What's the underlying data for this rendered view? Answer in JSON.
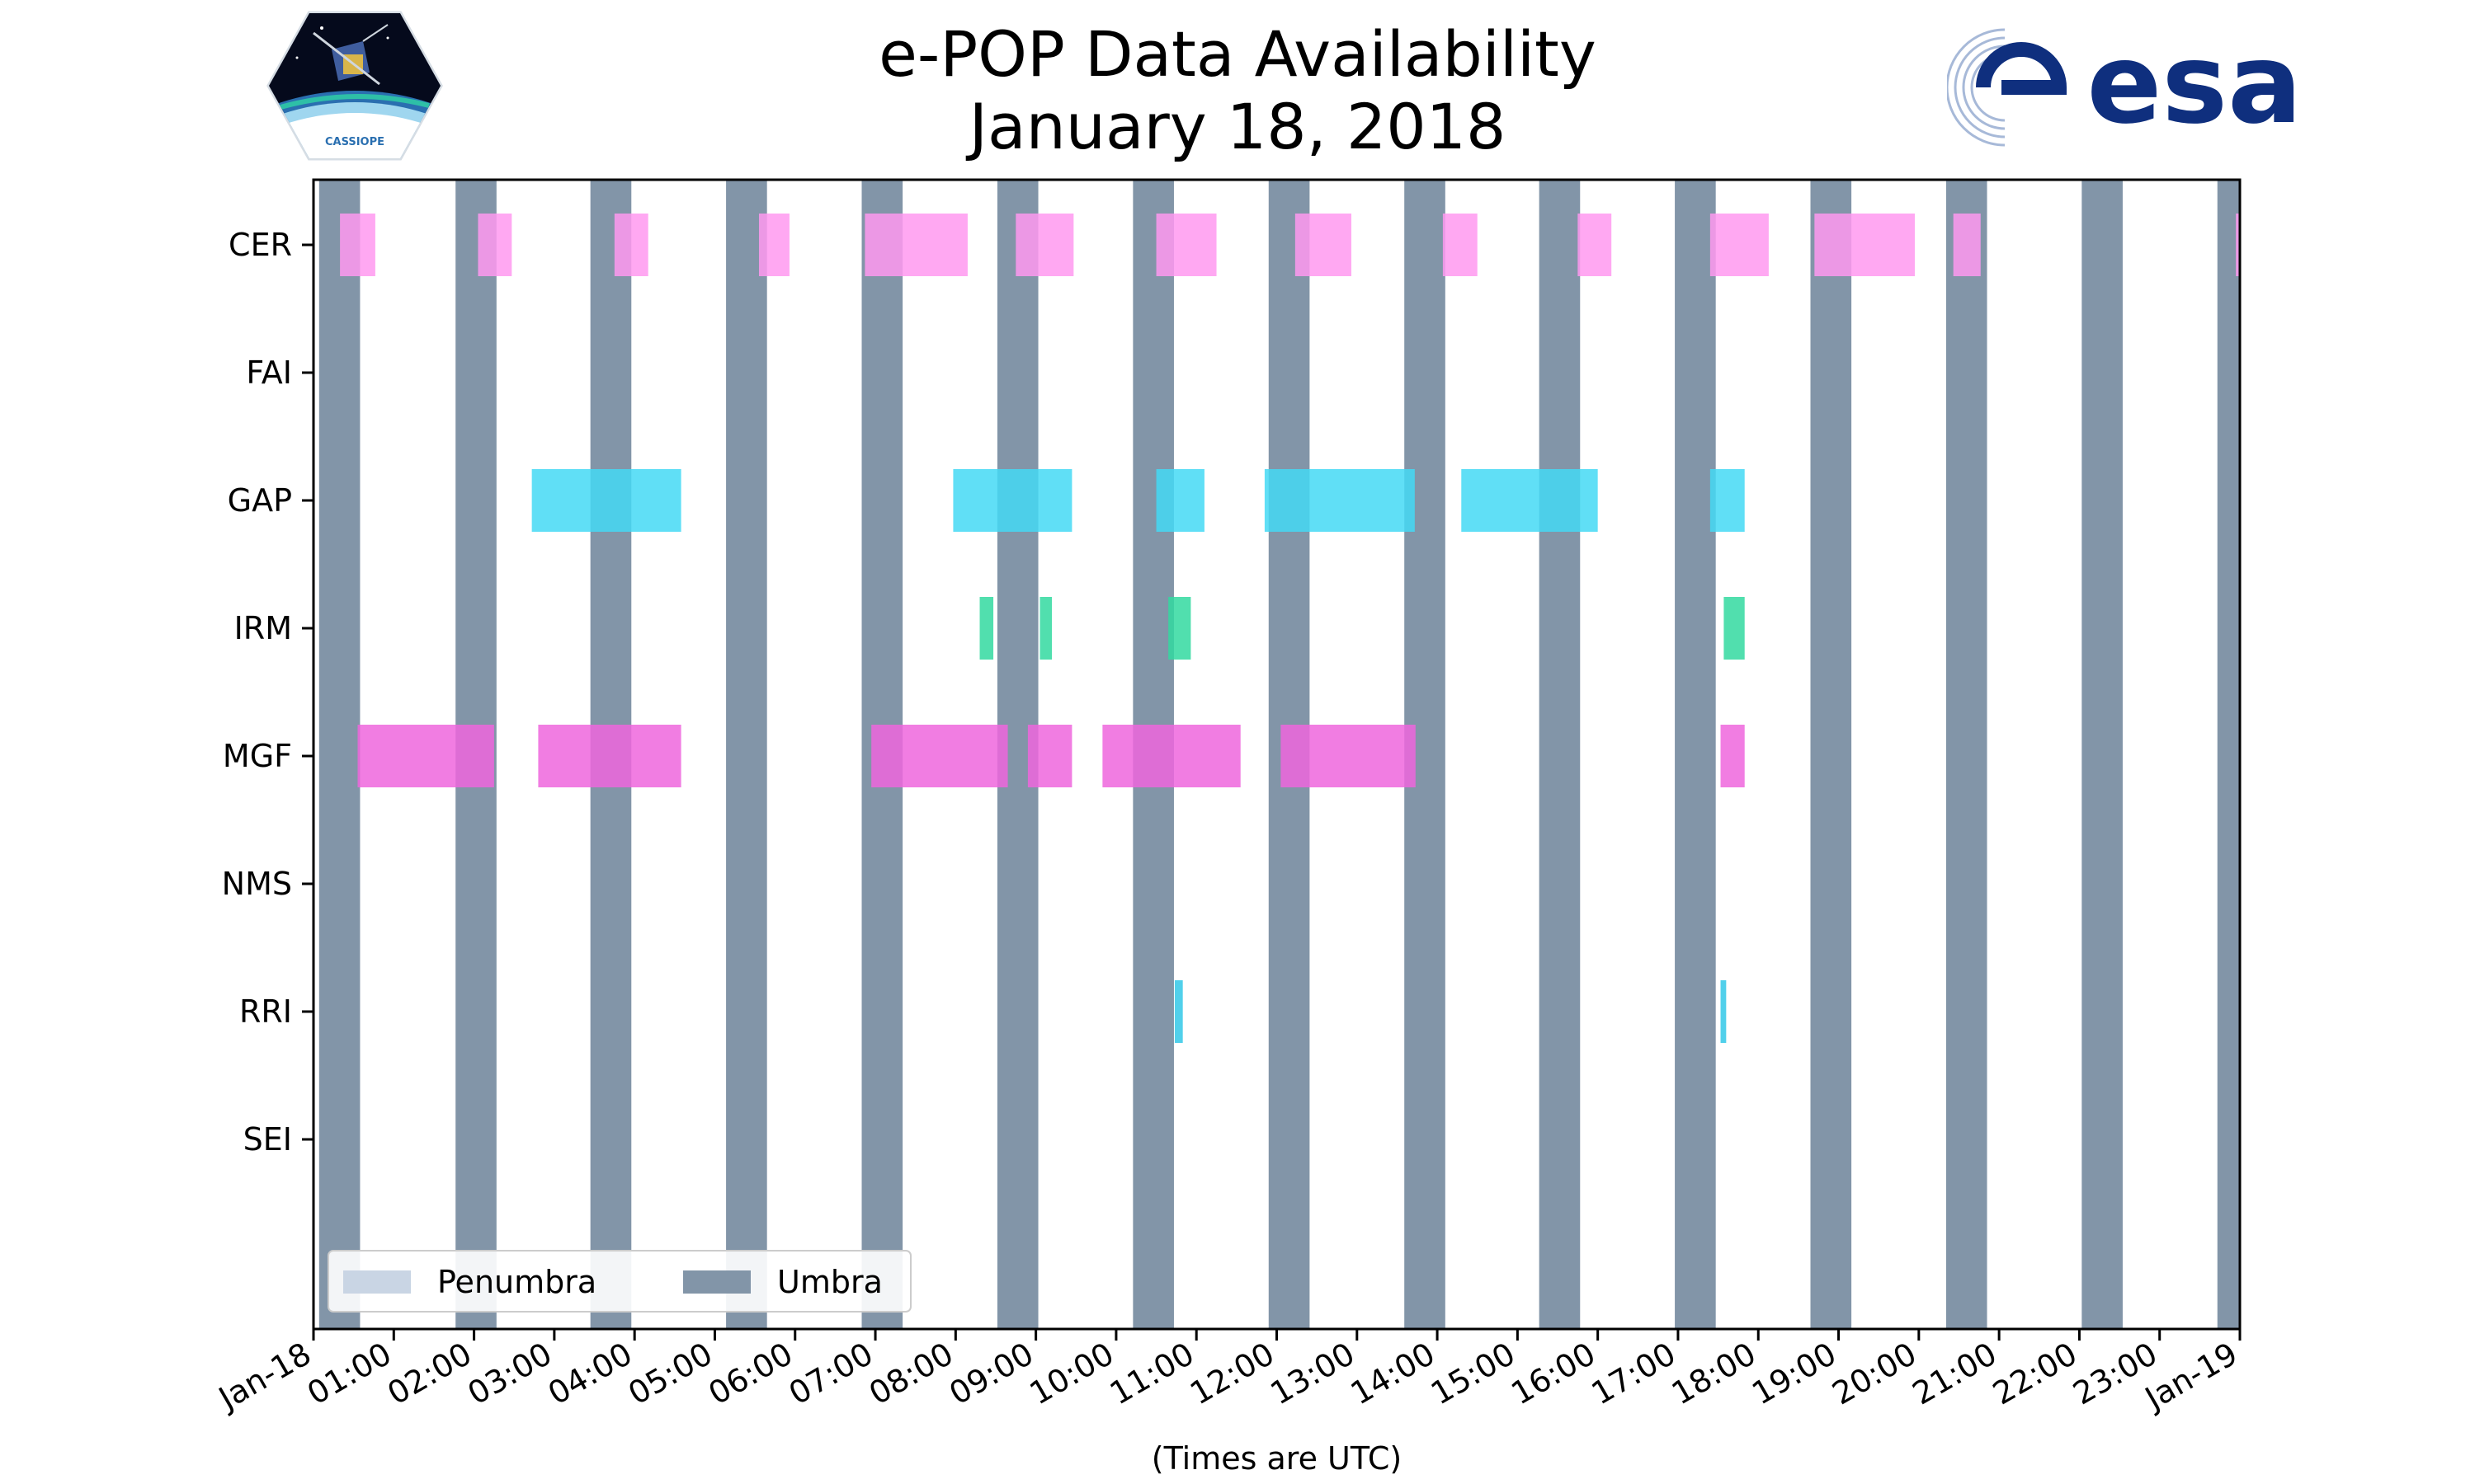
{
  "header": {
    "title_line_1": "e-POP Data Availability",
    "title_line_2": "January 18, 2018",
    "logo_left": "CASSIOPE",
    "logo_right": "esa"
  },
  "chart_data": {
    "type": "timeline",
    "title": "e-POP Data Availability January 18, 2018",
    "xlabel": "(Times are UTC)",
    "ylabel": "",
    "x_range_hours": [
      0,
      24
    ],
    "x_tick_labels": [
      "Jan-18",
      "01:00",
      "02:00",
      "03:00",
      "04:00",
      "05:00",
      "06:00",
      "07:00",
      "08:00",
      "09:00",
      "10:00",
      "11:00",
      "12:00",
      "13:00",
      "14:00",
      "15:00",
      "16:00",
      "17:00",
      "18:00",
      "19:00",
      "20:00",
      "21:00",
      "22:00",
      "23:00",
      "Jan-19"
    ],
    "instruments": [
      "CER",
      "FAI",
      "GAP",
      "IRM",
      "MGF",
      "NMS",
      "RRI",
      "SEI"
    ],
    "colors": {
      "CER": "#ff99f0",
      "GAP": "#44d9f5",
      "IRM": "#33d9a0",
      "MGF": "#ee66dd",
      "RRI": "#33c8e8",
      "umbra": "#8295a8",
      "penumbra": "#c9d5e4"
    },
    "umbra_intervals": [
      [
        0.07,
        0.58
      ],
      [
        1.77,
        2.28
      ],
      [
        3.45,
        3.96
      ],
      [
        5.14,
        5.65
      ],
      [
        6.83,
        7.34
      ],
      [
        8.52,
        9.03
      ],
      [
        10.21,
        10.72
      ],
      [
        11.9,
        12.41
      ],
      [
        13.59,
        14.1
      ],
      [
        15.27,
        15.78
      ],
      [
        16.96,
        17.47
      ],
      [
        18.65,
        19.16
      ],
      [
        20.34,
        20.85
      ],
      [
        22.03,
        22.54
      ],
      [
        23.72,
        24.0
      ]
    ],
    "series": [
      {
        "name": "CER",
        "intervals": [
          [
            0.33,
            0.77
          ],
          [
            2.05,
            2.47
          ],
          [
            3.75,
            4.17
          ],
          [
            5.55,
            5.93
          ],
          [
            6.87,
            8.15
          ],
          [
            8.75,
            9.47
          ],
          [
            10.5,
            11.25
          ],
          [
            12.23,
            12.93
          ],
          [
            14.07,
            14.5
          ],
          [
            15.75,
            16.17
          ],
          [
            17.4,
            18.13
          ],
          [
            18.7,
            19.95
          ],
          [
            20.43,
            20.77
          ],
          [
            23.95,
            24.0
          ]
        ]
      },
      {
        "name": "FAI",
        "intervals": []
      },
      {
        "name": "GAP",
        "intervals": [
          [
            2.72,
            4.58
          ],
          [
            7.97,
            9.45
          ],
          [
            10.5,
            11.1
          ],
          [
            11.85,
            13.72
          ],
          [
            14.3,
            16.0
          ],
          [
            17.4,
            17.83
          ]
        ]
      },
      {
        "name": "IRM",
        "intervals": [
          [
            8.3,
            8.47
          ],
          [
            9.05,
            9.2
          ],
          [
            10.65,
            10.93
          ],
          [
            17.57,
            17.83
          ]
        ]
      },
      {
        "name": "MGF",
        "intervals": [
          [
            0.55,
            2.25
          ],
          [
            2.8,
            4.58
          ],
          [
            6.95,
            8.65
          ],
          [
            8.9,
            9.45
          ],
          [
            9.83,
            11.55
          ],
          [
            12.05,
            13.73
          ],
          [
            17.53,
            17.83
          ]
        ]
      },
      {
        "name": "NMS",
        "intervals": []
      },
      {
        "name": "RRI",
        "intervals": [
          [
            10.73,
            10.83
          ],
          [
            17.53,
            17.6
          ]
        ]
      },
      {
        "name": "SEI",
        "intervals": []
      }
    ],
    "legend": {
      "position": "bottom-left",
      "entries": [
        {
          "label": "Penumbra",
          "color_key": "penumbra"
        },
        {
          "label": "Umbra",
          "color_key": "umbra"
        }
      ]
    }
  }
}
